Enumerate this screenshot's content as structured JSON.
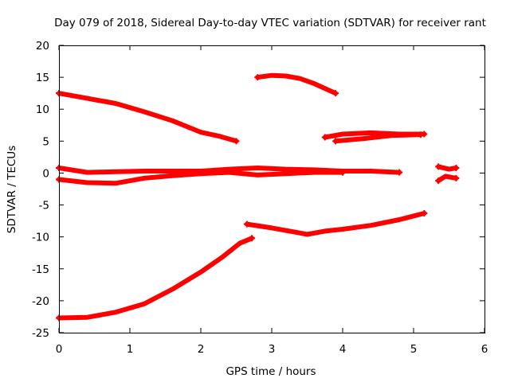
{
  "chart_data": {
    "type": "line",
    "title": "Day 079 of 2018, Sidereal Day-to-day VTEC variation (SDTVAR) for receiver rant",
    "xlabel": "GPS time / hours",
    "ylabel": "SDTVAR / TECUs",
    "xlim": [
      0,
      6
    ],
    "ylim": [
      -25,
      20
    ],
    "xticks": [
      0,
      1,
      2,
      3,
      4,
      5,
      6
    ],
    "yticks": [
      -25,
      -20,
      -15,
      -10,
      -5,
      0,
      5,
      10,
      15,
      20
    ],
    "grid": false,
    "legend": "none",
    "color": "#ff0000",
    "series": [
      {
        "points": [
          [
            0,
            12.5
          ],
          [
            0.4,
            11.7
          ],
          [
            0.8,
            10.9
          ],
          [
            1.2,
            9.6
          ],
          [
            1.6,
            8.2
          ],
          [
            2.0,
            6.4
          ],
          [
            2.25,
            5.8
          ],
          [
            2.5,
            5.0
          ]
        ]
      },
      {
        "points": [
          [
            2.8,
            15.0
          ],
          [
            3.0,
            15.3
          ],
          [
            3.2,
            15.2
          ],
          [
            3.4,
            14.8
          ],
          [
            3.6,
            14.0
          ],
          [
            3.9,
            12.5
          ]
        ]
      },
      {
        "points": [
          [
            3.75,
            5.6
          ],
          [
            4.0,
            6.1
          ],
          [
            4.4,
            6.3
          ],
          [
            4.8,
            6.1
          ],
          [
            5.15,
            6.1
          ]
        ]
      },
      {
        "points": [
          [
            3.9,
            5.0
          ],
          [
            4.3,
            5.4
          ],
          [
            4.7,
            5.9
          ],
          [
            5.1,
            6.0
          ]
        ]
      },
      {
        "points": [
          [
            0,
            0.8
          ],
          [
            0.4,
            0.1
          ],
          [
            0.8,
            0.2
          ],
          [
            1.2,
            0.3
          ],
          [
            1.6,
            0.3
          ],
          [
            2.0,
            0.3
          ],
          [
            2.4,
            0.6
          ],
          [
            2.8,
            0.8
          ],
          [
            3.2,
            0.6
          ],
          [
            3.6,
            0.5
          ],
          [
            4.0,
            0.3
          ],
          [
            4.4,
            0.3
          ],
          [
            4.8,
            0.1
          ]
        ]
      },
      {
        "points": [
          [
            0,
            -1.0
          ],
          [
            0.4,
            -1.5
          ],
          [
            0.8,
            -1.6
          ],
          [
            1.2,
            -0.8
          ],
          [
            1.6,
            -0.4
          ],
          [
            2.0,
            -0.1
          ],
          [
            2.4,
            0.1
          ],
          [
            2.8,
            -0.3
          ],
          [
            3.2,
            -0.1
          ],
          [
            3.6,
            0.1
          ],
          [
            4.0,
            0.1
          ]
        ]
      },
      {
        "points": [
          [
            5.35,
            1.0
          ],
          [
            5.5,
            0.6
          ],
          [
            5.6,
            0.8
          ]
        ]
      },
      {
        "points": [
          [
            5.35,
            -1.2
          ],
          [
            5.45,
            -0.5
          ],
          [
            5.6,
            -0.8
          ]
        ]
      },
      {
        "points": [
          [
            2.65,
            -8.0
          ],
          [
            3.0,
            -8.6
          ],
          [
            3.3,
            -9.2
          ],
          [
            3.5,
            -9.6
          ],
          [
            3.75,
            -9.1
          ],
          [
            4.0,
            -8.8
          ],
          [
            4.4,
            -8.2
          ],
          [
            4.8,
            -7.3
          ],
          [
            5.15,
            -6.3
          ]
        ]
      },
      {
        "points": [
          [
            0,
            -22.7
          ],
          [
            0.4,
            -22.6
          ],
          [
            0.8,
            -21.8
          ],
          [
            1.2,
            -20.5
          ],
          [
            1.6,
            -18.2
          ],
          [
            2.0,
            -15.5
          ],
          [
            2.3,
            -13.2
          ],
          [
            2.55,
            -11.0
          ],
          [
            2.72,
            -10.2
          ]
        ]
      }
    ]
  }
}
